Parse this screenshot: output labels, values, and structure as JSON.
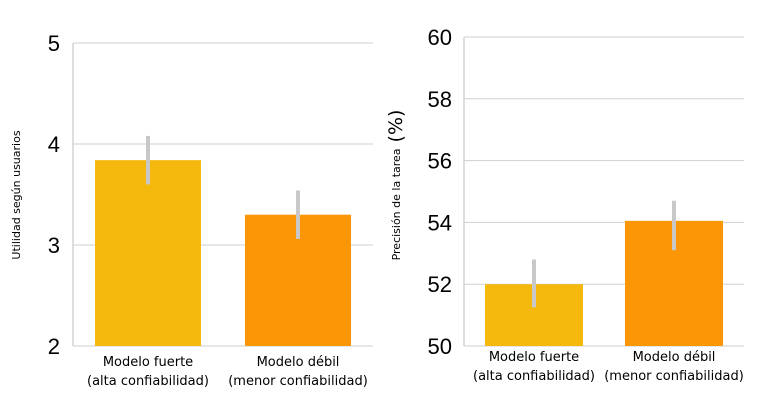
{
  "chart_data": [
    {
      "type": "bar",
      "title": "",
      "xlabel": "",
      "ylabel": "Utilidad según usuarios",
      "ylim": [
        2,
        5
      ],
      "yticks": [
        "2",
        "3",
        "4",
        "5"
      ],
      "grid": true,
      "categories": [
        [
          "Modelo fuerte",
          "(alta confiabilidad)"
        ],
        [
          "Modelo débil",
          "(menor confiabilidad)"
        ]
      ],
      "values": [
        3.84,
        3.3
      ],
      "error_low": [
        3.6,
        3.06
      ],
      "error_high": [
        4.08,
        3.54
      ],
      "colors": [
        "#F5B90D",
        "#FB9707"
      ]
    },
    {
      "type": "bar",
      "title": "",
      "xlabel": "",
      "ylabel": "Precisión de la tarea",
      "ylabel_unit": "(%)",
      "ylim": [
        50,
        60
      ],
      "yticks": [
        "50",
        "52",
        "54",
        "56",
        "58",
        "60"
      ],
      "grid": true,
      "categories": [
        [
          "Modelo fuerte",
          "(alta confiabilidad)"
        ],
        [
          "Modelo débil",
          "(menor confiabilidad)"
        ]
      ],
      "values": [
        52.0,
        54.05
      ],
      "error_low": [
        51.25,
        53.1
      ],
      "error_high": [
        52.8,
        54.7
      ],
      "colors": [
        "#F5B90D",
        "#FB9707"
      ]
    }
  ],
  "error_bar_color": "#C8C8C8",
  "grid_color": "#CFCFCF"
}
